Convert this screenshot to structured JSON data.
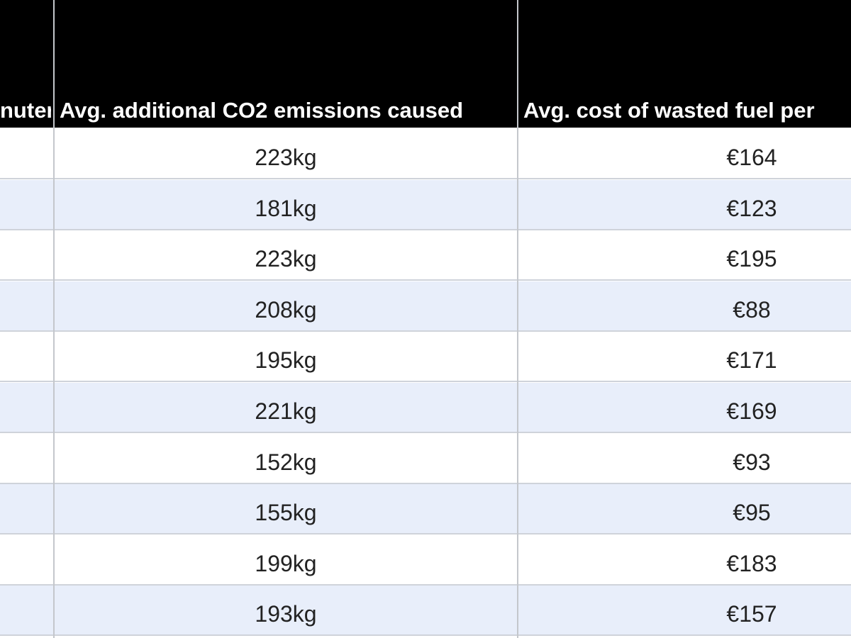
{
  "table": {
    "header": [
      "nuter",
      "Avg. additional CO2 emissions caused",
      "Avg. cost of wasted fuel per"
    ],
    "rows": [
      [
        "223kg",
        "€164"
      ],
      [
        "181kg",
        "€123"
      ],
      [
        "223kg",
        "€195"
      ],
      [
        "208kg",
        "€88"
      ],
      [
        "195kg",
        "€171"
      ],
      [
        "221kg",
        "€169"
      ],
      [
        "152kg",
        "€93"
      ],
      [
        "155kg",
        "€95"
      ],
      [
        "199kg",
        "€183"
      ],
      [
        "193kg",
        "€157"
      ]
    ]
  }
}
